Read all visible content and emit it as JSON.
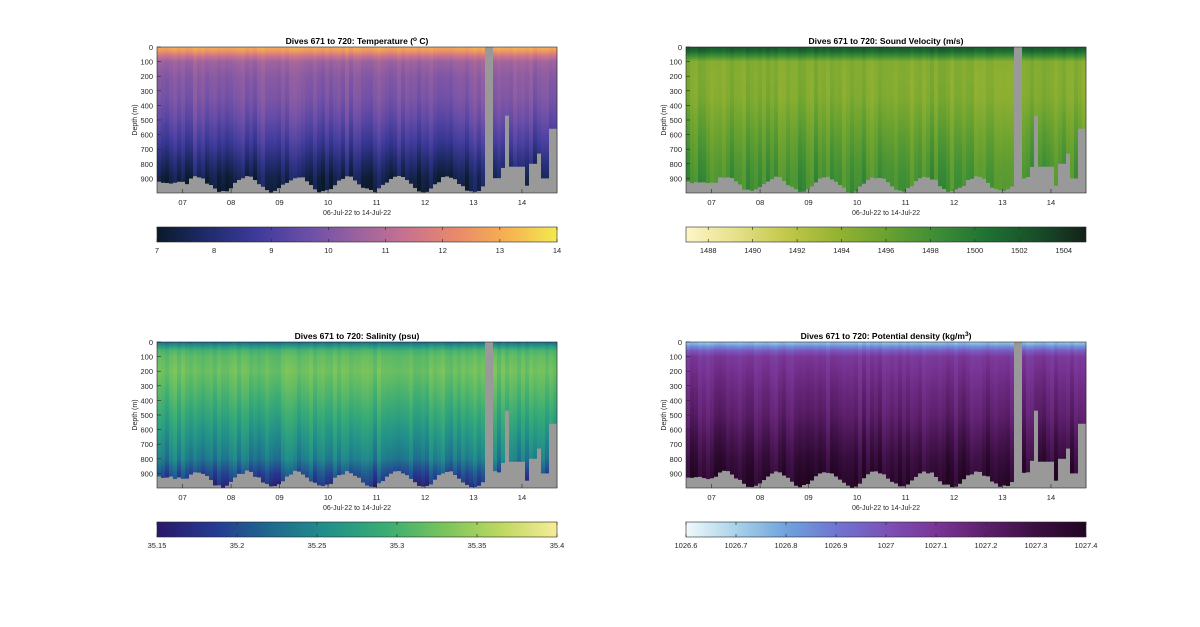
{
  "colors": {
    "gap_gray": "#999999",
    "axis": "#262626",
    "background": "#ffffff"
  },
  "chart_data": [
    {
      "type": "heatmap",
      "title": "Dives 671 to 720: Temperature (",
      "title_sup": "o",
      "title_tail": " C)",
      "ylabel": "Depth (m)",
      "xlabel": "06-Jul-22 to 14-Jul-22",
      "x_ticks": [
        "07",
        "08",
        "09",
        "10",
        "11",
        "12",
        "13",
        "14"
      ],
      "y_ticks": [
        0,
        100,
        200,
        300,
        400,
        500,
        600,
        700,
        800,
        900
      ],
      "ylim": [
        0,
        1000
      ],
      "colorbar": {
        "ticks": [
          "7",
          "8",
          "9",
          "10",
          "11",
          "12",
          "13",
          "14"
        ],
        "range": [
          7,
          14
        ],
        "colors": [
          "#0a1a2a",
          "#1f2b6b",
          "#3d3a9c",
          "#6b4ea8",
          "#9a62a0",
          "#c9728f",
          "#e88a6a",
          "#f6b150",
          "#f2ea50"
        ]
      },
      "profile": [
        {
          "depth": 0,
          "value": 13.1
        },
        {
          "depth": 40,
          "value": 12.3
        },
        {
          "depth": 80,
          "value": 10.7
        },
        {
          "depth": 200,
          "value": 10.2
        },
        {
          "depth": 400,
          "value": 9.9
        },
        {
          "depth": 600,
          "value": 9.1
        },
        {
          "depth": 750,
          "value": 8.4
        },
        {
          "depth": 850,
          "value": 7.6
        },
        {
          "depth": 1000,
          "value": 7.3
        }
      ]
    },
    {
      "type": "heatmap",
      "title": "Dives 671 to 720: Sound Velocity (m/s)",
      "title_sup": "",
      "title_tail": "",
      "ylabel": "Depth (m)",
      "xlabel": "06-Jul-22 to 14-Jul-22",
      "x_ticks": [
        "07",
        "08",
        "09",
        "10",
        "11",
        "12",
        "13",
        "14"
      ],
      "y_ticks": [
        0,
        100,
        200,
        300,
        400,
        500,
        600,
        700,
        800,
        900
      ],
      "ylim": [
        0,
        1000
      ],
      "colorbar": {
        "ticks": [
          "1488",
          "1490",
          "1492",
          "1494",
          "1496",
          "1498",
          "1500",
          "1502",
          "1504"
        ],
        "range": [
          1487,
          1505
        ],
        "colors": [
          "#fdf6c8",
          "#e6e08a",
          "#c2c84a",
          "#96b332",
          "#6aa230",
          "#3e8e36",
          "#1f7232",
          "#184f2a",
          "#122219"
        ]
      },
      "profile": [
        {
          "depth": 0,
          "value": 1502.5
        },
        {
          "depth": 40,
          "value": 1500.5
        },
        {
          "depth": 100,
          "value": 1494.8
        },
        {
          "depth": 300,
          "value": 1494.6
        },
        {
          "depth": 500,
          "value": 1495.8
        },
        {
          "depth": 700,
          "value": 1497.0
        },
        {
          "depth": 850,
          "value": 1497.8
        },
        {
          "depth": 1000,
          "value": 1498.2
        }
      ]
    },
    {
      "type": "heatmap",
      "title": "Dives 671 to 720: Salinity (psu)",
      "title_sup": "",
      "title_tail": "",
      "ylabel": "Depth (m)",
      "xlabel": "06-Jul-22 to 14-Jul-22",
      "x_ticks": [
        "07",
        "08",
        "09",
        "10",
        "11",
        "12",
        "13",
        "14"
      ],
      "y_ticks": [
        0,
        100,
        200,
        300,
        400,
        500,
        600,
        700,
        800,
        900
      ],
      "ylim": [
        0,
        1000
      ],
      "colorbar": {
        "ticks": [
          "35.15",
          "35.2",
          "35.25",
          "35.3",
          "35.35",
          "35.4"
        ],
        "range": [
          35.15,
          35.4
        ],
        "colors": [
          "#2a1868",
          "#253a92",
          "#1f6a8e",
          "#21918a",
          "#3aad74",
          "#78c35c",
          "#bcd860",
          "#f7ec98"
        ]
      },
      "profile": [
        {
          "depth": 0,
          "value": 35.22
        },
        {
          "depth": 50,
          "value": 35.3
        },
        {
          "depth": 150,
          "value": 35.33
        },
        {
          "depth": 400,
          "value": 35.3
        },
        {
          "depth": 600,
          "value": 35.27
        },
        {
          "depth": 800,
          "value": 35.24
        },
        {
          "depth": 900,
          "value": 35.2
        },
        {
          "depth": 1000,
          "value": 35.17
        }
      ]
    },
    {
      "type": "heatmap",
      "title": "Dives 671 to 720: Potential density (kg/m",
      "title_sup": "3",
      "title_tail": ")",
      "ylabel": "Depth (m)",
      "xlabel": "06-Jul-22 to 14-Jul-22",
      "x_ticks": [
        "07",
        "08",
        "09",
        "10",
        "11",
        "12",
        "13",
        "14"
      ],
      "y_ticks": [
        0,
        100,
        200,
        300,
        400,
        500,
        600,
        700,
        800,
        900
      ],
      "ylim": [
        0,
        1000
      ],
      "colorbar": {
        "ticks": [
          "1026.6",
          "1026.7",
          "1026.8",
          "1026.9",
          "1027",
          "1027.1",
          "1027.2",
          "1027.3",
          "1027.4"
        ],
        "range": [
          1026.6,
          1027.4
        ],
        "colors": [
          "#f1f9fb",
          "#a9d2ea",
          "#6fa3dc",
          "#6f76d2",
          "#7c52b8",
          "#7a3596",
          "#5c1f6b",
          "#3b0f42",
          "#220522"
        ]
      },
      "profile": [
        {
          "depth": 0,
          "value": 1026.72
        },
        {
          "depth": 40,
          "value": 1026.88
        },
        {
          "depth": 80,
          "value": 1027.08
        },
        {
          "depth": 300,
          "value": 1027.15
        },
        {
          "depth": 500,
          "value": 1027.2
        },
        {
          "depth": 700,
          "value": 1027.28
        },
        {
          "depth": 850,
          "value": 1027.34
        },
        {
          "depth": 1000,
          "value": 1027.38
        }
      ]
    }
  ]
}
